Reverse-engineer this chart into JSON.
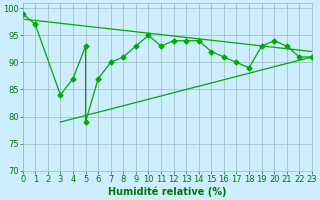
{
  "xlabel": "Humidité relative (%)",
  "xlim": [
    0,
    23
  ],
  "ylim": [
    70,
    101
  ],
  "yticks": [
    70,
    75,
    80,
    85,
    90,
    95,
    100
  ],
  "xticks": [
    0,
    1,
    2,
    3,
    4,
    5,
    6,
    7,
    8,
    9,
    10,
    11,
    12,
    13,
    14,
    15,
    16,
    17,
    18,
    19,
    20,
    21,
    22,
    23
  ],
  "background_color": "#cceeff",
  "grid_color": "#99bbbb",
  "line_color": "#00aa00",
  "series1_x": [
    0,
    1,
    3,
    4,
    5,
    5,
    6,
    7,
    8,
    9,
    10,
    11,
    12,
    13,
    14,
    15,
    16,
    17,
    18,
    19,
    20,
    21,
    22,
    23
  ],
  "series1_y": [
    99,
    97,
    84,
    87,
    93,
    79,
    87,
    90,
    91,
    93,
    95,
    93,
    94,
    94,
    94,
    92,
    91,
    90,
    89,
    93,
    94,
    93,
    91,
    91
  ],
  "series2_x": [
    0,
    23
  ],
  "series2_y": [
    98,
    92
  ],
  "series3_x": [
    3,
    23
  ],
  "series3_y": [
    79,
    91
  ],
  "line_width": 0.9,
  "marker": "D",
  "marker_size": 2.5,
  "font_color": "#007700",
  "tick_fontsize": 6,
  "label_fontsize": 7
}
